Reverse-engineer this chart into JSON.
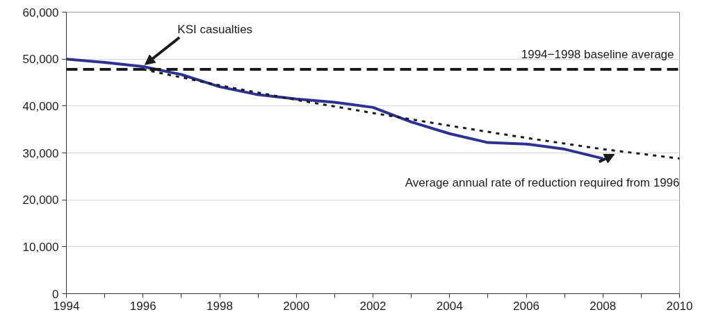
{
  "chart_data": {
    "type": "line",
    "x": [
      1994,
      1995,
      1996,
      1997,
      1998,
      1999,
      2000,
      2001,
      2002,
      2003,
      2004,
      2005,
      2006,
      2007,
      2008
    ],
    "series": [
      {
        "color": "#2e3192",
        "line_style": "solid",
        "values": [
          50000,
          49300,
          48400,
          46700,
          44100,
          42400,
          41500,
          40800,
          39700,
          36600,
          34100,
          32200,
          31900,
          30800,
          28800
        ]
      },
      {
        "color": "#1a1a1a",
        "line_style": "dotted",
        "x": [
          1996,
          1998,
          2000,
          2002,
          2004,
          2006,
          2008,
          2010
        ],
        "values": [
          47800,
          44400,
          41300,
          38500,
          35800,
          33200,
          30800,
          28800
        ]
      }
    ],
    "ref_lines": [
      {
        "axis": "y",
        "value": 47800,
        "label": "1994−1998 baseline average",
        "color": "#1a1a1a",
        "line_style": "dashed"
      }
    ],
    "annotations": [
      {
        "text": "KSI casualties",
        "x": 1996,
        "y": 48400
      },
      {
        "text": "Average annual rate of reduction required from 1996",
        "x": 2008.3,
        "y": 30600
      }
    ],
    "xlim": [
      1994,
      2010
    ],
    "xticks": [
      1994,
      {
        "value": 1995,
        "label": null
      },
      1996,
      {
        "value": 1997,
        "label": null
      },
      1998,
      {
        "value": 1999,
        "label": null
      },
      2000,
      {
        "value": 2001,
        "label": null
      },
      2002,
      {
        "value": 2003,
        "label": null
      },
      2004,
      {
        "value": 2005,
        "label": null
      },
      2006,
      {
        "value": 2007,
        "label": null
      },
      2008,
      {
        "value": 2009,
        "label": null
      },
      2010
    ],
    "ylim": [
      0,
      60000
    ],
    "yticks": [
      {
        "value": 0,
        "label": "0"
      },
      {
        "value": 10000,
        "label": "10,000"
      },
      {
        "value": 20000,
        "label": "20,000"
      },
      {
        "value": 30000,
        "label": "30,000"
      },
      {
        "value": 40000,
        "label": "40,000"
      },
      {
        "value": 50000,
        "label": "50,000"
      },
      {
        "value": 60000,
        "label": "60,000"
      }
    ],
    "grid": "y"
  }
}
